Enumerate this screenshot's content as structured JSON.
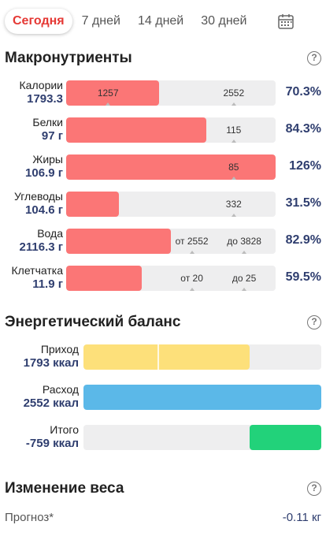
{
  "tabs": [
    {
      "label": "Сегодня",
      "active": true
    },
    {
      "label": "7 дней",
      "active": false
    },
    {
      "label": "14 дней",
      "active": false
    },
    {
      "label": "30 дней",
      "active": false
    }
  ],
  "macros": {
    "title": "Макронутриенты",
    "rows": [
      {
        "name": "Калории",
        "value": "1793.3",
        "fill": 0.445,
        "markers": [
          {
            "text": "1257",
            "pos": 0.2
          },
          {
            "text": "2552",
            "pos": 0.8
          }
        ],
        "percent": "70.3%"
      },
      {
        "name": "Белки",
        "value": "97 г",
        "fill": 0.67,
        "markers": [
          {
            "text": "115",
            "pos": 0.8
          }
        ],
        "percent": "84.3%"
      },
      {
        "name": "Жиры",
        "value": "106.9 г",
        "fill": 1.0,
        "markers": [
          {
            "text": "85",
            "pos": 0.8
          }
        ],
        "percent": "126%"
      },
      {
        "name": "Углеводы",
        "value": "104.6 г",
        "fill": 0.25,
        "markers": [
          {
            "text": "332",
            "pos": 0.8
          }
        ],
        "percent": "31.5%"
      },
      {
        "name": "Вода",
        "value": "2116.3 г",
        "fill": 0.5,
        "markers": [
          {
            "text": "от 2552",
            "pos": 0.6
          },
          {
            "text": "до 3828",
            "pos": 0.85
          }
        ],
        "percent": "82.9%"
      },
      {
        "name": "Клетчатка",
        "value": "11.9 г",
        "fill": 0.36,
        "markers": [
          {
            "text": "от 20",
            "pos": 0.6
          },
          {
            "text": "до 25",
            "pos": 0.85
          }
        ],
        "percent": "59.5%"
      }
    ]
  },
  "energy": {
    "title": "Энергетический баланс",
    "rows": [
      {
        "name": "Приход",
        "value": "1793 ккал",
        "start": 0.0,
        "fill": 0.7,
        "color": "#fde07a",
        "divider": 0.31
      },
      {
        "name": "Расход",
        "value": "2552 ккал",
        "start": 0.0,
        "fill": 1.0,
        "color": "#5bb8e8"
      },
      {
        "name": "Итого",
        "value": "-759 ккал",
        "start": 0.7,
        "fill": 0.3,
        "color": "#22d27a"
      }
    ]
  },
  "weight": {
    "title": "Изменение веса",
    "forecast_label": "Прогноз*",
    "forecast_value": "-0.11 кг"
  },
  "icons": {
    "calendar": "calendar-icon",
    "help": "help-icon"
  },
  "colors": {
    "accent": "#e53935",
    "value": "#2f3e6f",
    "bar": "#fb7676"
  }
}
